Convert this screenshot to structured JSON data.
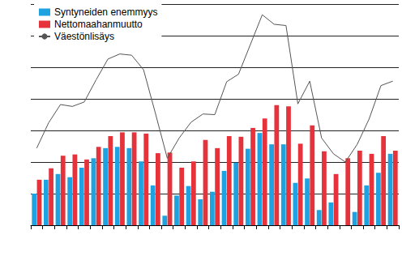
{
  "chart_data": {
    "type": "bar",
    "categories": [
      null,
      null,
      null,
      null,
      null,
      null,
      null,
      null,
      null,
      null,
      null,
      null,
      null,
      null,
      null,
      null,
      null,
      null,
      null,
      null,
      null,
      null,
      null,
      null,
      null,
      null,
      null,
      null,
      null,
      null,
      null
    ],
    "series": [
      {
        "name": "Syntyneiden enemmyys",
        "type": "bar",
        "color": "#1fa3e0",
        "values": [
          5.0,
          7.2,
          8.1,
          7.6,
          9.1,
          10.6,
          12.2,
          12.4,
          12.2,
          10.1,
          6.3,
          1.5,
          4.7,
          6.2,
          4.1,
          5.3,
          8.6,
          9.9,
          12.1,
          14.6,
          12.8,
          12.8,
          6.7,
          7.4,
          2.4,
          3.6,
          0.0,
          2.1,
          6.3,
          8.3,
          11.3
        ]
      },
      {
        "name": "Nettomaahanmuutto",
        "type": "bar",
        "color": "#e6333b",
        "values": [
          7.2,
          9.0,
          11.0,
          11.2,
          10.4,
          12.4,
          14.1,
          14.7,
          14.7,
          14.5,
          11.4,
          11.5,
          9.1,
          10.1,
          13.5,
          12.2,
          14.1,
          14.0,
          15.4,
          16.9,
          19.0,
          18.8,
          12.9,
          15.8,
          11.7,
          8.1,
          10.6,
          11.8,
          11.3,
          14.1,
          11.8
        ]
      },
      {
        "name": "Väestönlisäys",
        "type": "line",
        "color": "#555555",
        "values": [
          12.2,
          16.2,
          19.1,
          18.8,
          19.5,
          23.0,
          26.3,
          27.1,
          26.9,
          24.6,
          17.7,
          10.6,
          13.8,
          16.3,
          17.6,
          17.5,
          22.7,
          23.9,
          28.6,
          33.3,
          31.8,
          31.6,
          19.2,
          22.8,
          13.8,
          11.3,
          10.0,
          12.8,
          16.8,
          22.1,
          22.8
        ]
      }
    ],
    "ylim": [
      0,
      35
    ],
    "yticks": [
      0,
      5,
      10,
      15,
      20,
      25,
      30,
      35
    ],
    "grid": true,
    "legend": "top-left",
    "tick_labels": false
  }
}
